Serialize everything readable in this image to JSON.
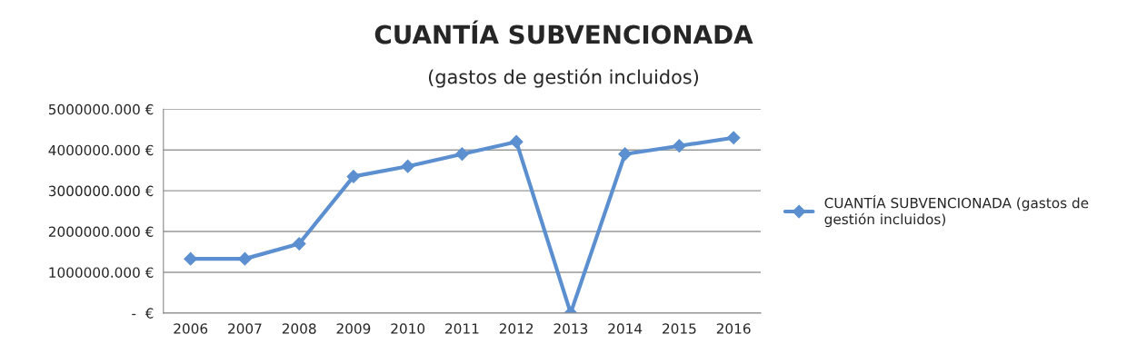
{
  "chart_data": {
    "type": "line",
    "title": "CUANTÍA SUBVENCIONADA",
    "subtitle": "(gastos de gestión incluidos)",
    "categories": [
      "2006",
      "2007",
      "2008",
      "2009",
      "2010",
      "2011",
      "2012",
      "2013",
      "2014",
      "2015",
      "2016"
    ],
    "series": [
      {
        "name": "CUANTÍA SUBVENCIONADA (gastos de gestión incluidos)",
        "color": "#5b8fcf",
        "values": [
          1330000,
          1330000,
          1700000,
          3350000,
          3600000,
          3900000,
          4200000,
          0,
          3900000,
          4100000,
          4300000
        ]
      }
    ],
    "ylim": [
      0,
      5000000
    ],
    "yticks": [
      {
        "value": 0,
        "label": "-  €"
      },
      {
        "value": 1000000,
        "label": "1000000.000 €"
      },
      {
        "value": 2000000,
        "label": "2000000.000 €"
      },
      {
        "value": 3000000,
        "label": "3000000.000 €"
      },
      {
        "value": 4000000,
        "label": "4000000.000 €"
      },
      {
        "value": 5000000,
        "label": "5000000.000 €"
      }
    ],
    "grid": "y",
    "legend": "right",
    "marker": "diamond",
    "line_style": "solid"
  }
}
